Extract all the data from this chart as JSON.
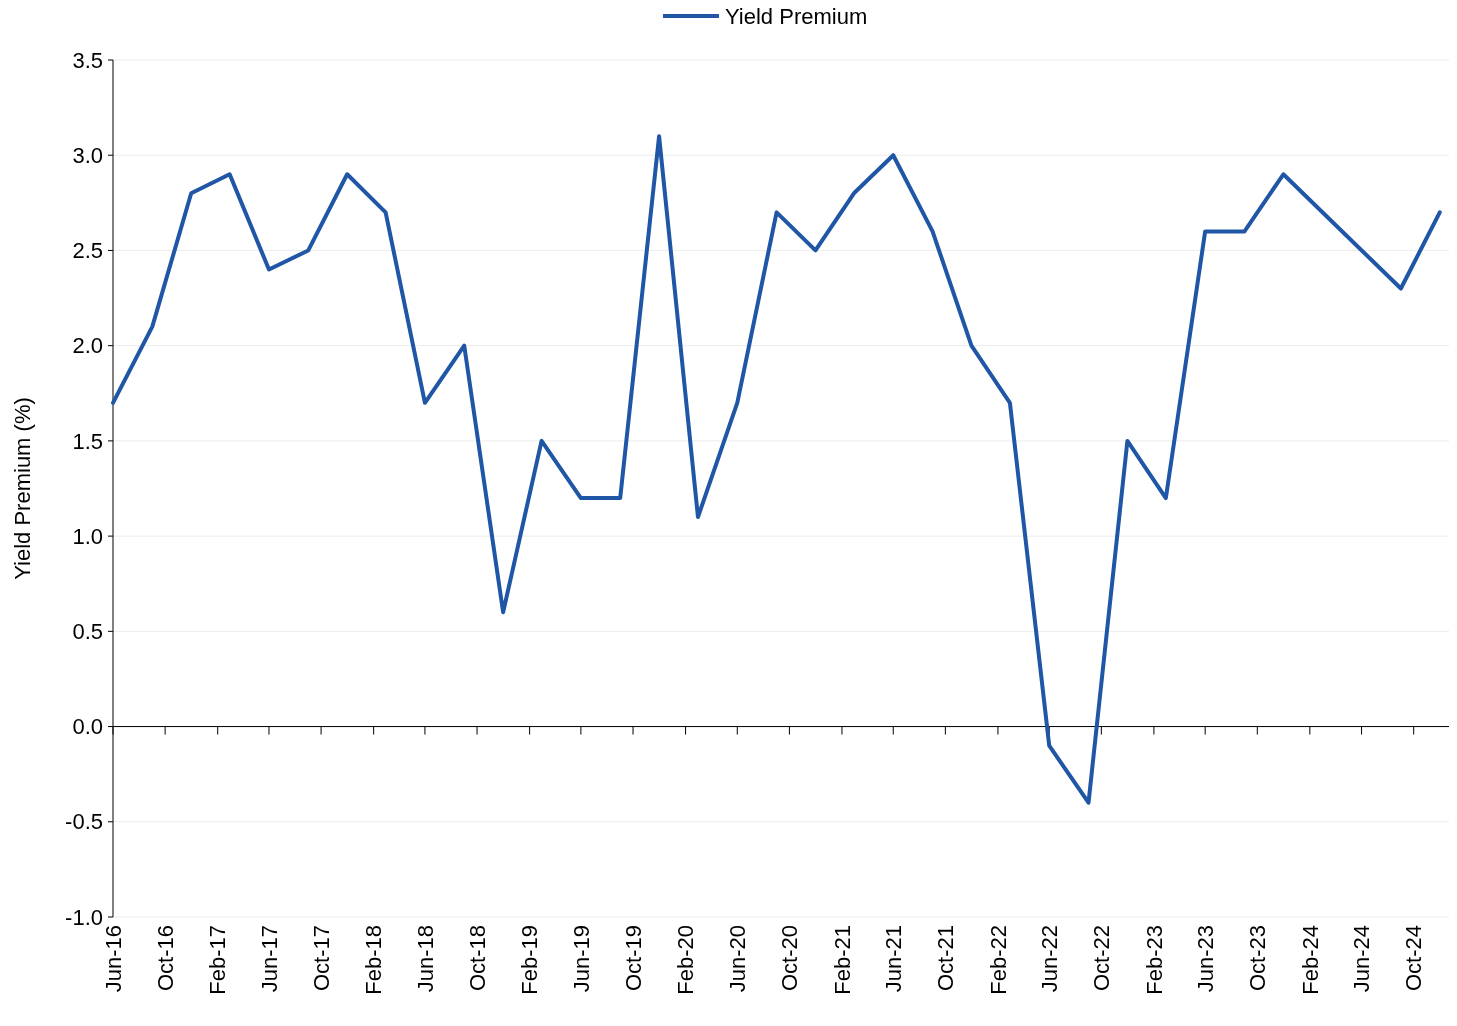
{
  "chart_data": {
    "type": "line",
    "ylabel": "Yield Premium (%)",
    "x": [
      "2016-06",
      "2016-09",
      "2016-12",
      "2017-03",
      "2017-06",
      "2017-09",
      "2017-12",
      "2018-03",
      "2018-06",
      "2018-09",
      "2018-12",
      "2019-03",
      "2019-06",
      "2019-09",
      "2019-12",
      "2020-03",
      "2020-06",
      "2020-09",
      "2020-12",
      "2021-03",
      "2021-06",
      "2021-09",
      "2021-12",
      "2022-03",
      "2022-06",
      "2022-09",
      "2022-12",
      "2023-03",
      "2023-06",
      "2023-09",
      "2023-12",
      "2024-09",
      "2024-12"
    ],
    "series": [
      {
        "name": "Yield Premium",
        "color": "#1f56a5",
        "values": [
          1.7,
          2.1,
          2.8,
          2.9,
          2.4,
          2.5,
          2.9,
          2.7,
          1.7,
          2.0,
          0.6,
          1.5,
          1.2,
          1.2,
          3.1,
          1.1,
          1.7,
          2.7,
          2.5,
          2.8,
          3.0,
          2.6,
          2.0,
          1.7,
          -0.1,
          -0.4,
          1.5,
          1.2,
          2.6,
          2.6,
          2.9,
          2.3,
          2.7
        ]
      }
    ],
    "xlim": [
      "2016-06",
      "2025-01"
    ],
    "xticks": [
      {
        "value": "2016-06",
        "label": "Jun-16"
      },
      {
        "value": "2016-10",
        "label": "Oct-16"
      },
      {
        "value": "2017-02",
        "label": "Feb-17"
      },
      {
        "value": "2017-06",
        "label": "Jun-17"
      },
      {
        "value": "2017-10",
        "label": "Oct-17"
      },
      {
        "value": "2018-02",
        "label": "Feb-18"
      },
      {
        "value": "2018-06",
        "label": "Jun-18"
      },
      {
        "value": "2018-10",
        "label": "Oct-18"
      },
      {
        "value": "2019-02",
        "label": "Feb-19"
      },
      {
        "value": "2019-06",
        "label": "Jun-19"
      },
      {
        "value": "2019-10",
        "label": "Oct-19"
      },
      {
        "value": "2020-02",
        "label": "Feb-20"
      },
      {
        "value": "2020-06",
        "label": "Jun-20"
      },
      {
        "value": "2020-10",
        "label": "Oct-20"
      },
      {
        "value": "2021-02",
        "label": "Feb-21"
      },
      {
        "value": "2021-06",
        "label": "Jun-21"
      },
      {
        "value": "2021-10",
        "label": "Oct-21"
      },
      {
        "value": "2022-02",
        "label": "Feb-22"
      },
      {
        "value": "2022-06",
        "label": "Jun-22"
      },
      {
        "value": "2022-10",
        "label": "Oct-22"
      },
      {
        "value": "2023-02",
        "label": "Feb-23"
      },
      {
        "value": "2023-06",
        "label": "Jun-23"
      },
      {
        "value": "2023-10",
        "label": "Oct-23"
      },
      {
        "value": "2024-02",
        "label": "Feb-24"
      },
      {
        "value": "2024-06",
        "label": "Jun-24"
      },
      {
        "value": "2024-10",
        "label": "Oct-24"
      }
    ],
    "ylim": [
      -1.0,
      3.5
    ],
    "yticks": [
      {
        "value": 3.5,
        "label": "3.5"
      },
      {
        "value": 3.0,
        "label": "3.0"
      },
      {
        "value": 2.5,
        "label": "2.5"
      },
      {
        "value": 2.0,
        "label": "2.0"
      },
      {
        "value": 1.5,
        "label": "1.5"
      },
      {
        "value": 1.0,
        "label": "1.0"
      },
      {
        "value": 0.5,
        "label": "0.5"
      },
      {
        "value": 0.0,
        "label": "0.0"
      },
      {
        "value": -0.5,
        "label": "-0.5"
      },
      {
        "value": -1.0,
        "label": "-1.0"
      }
    ],
    "grid": "y",
    "legend": "top",
    "marker": "none",
    "line_style": "solid"
  }
}
